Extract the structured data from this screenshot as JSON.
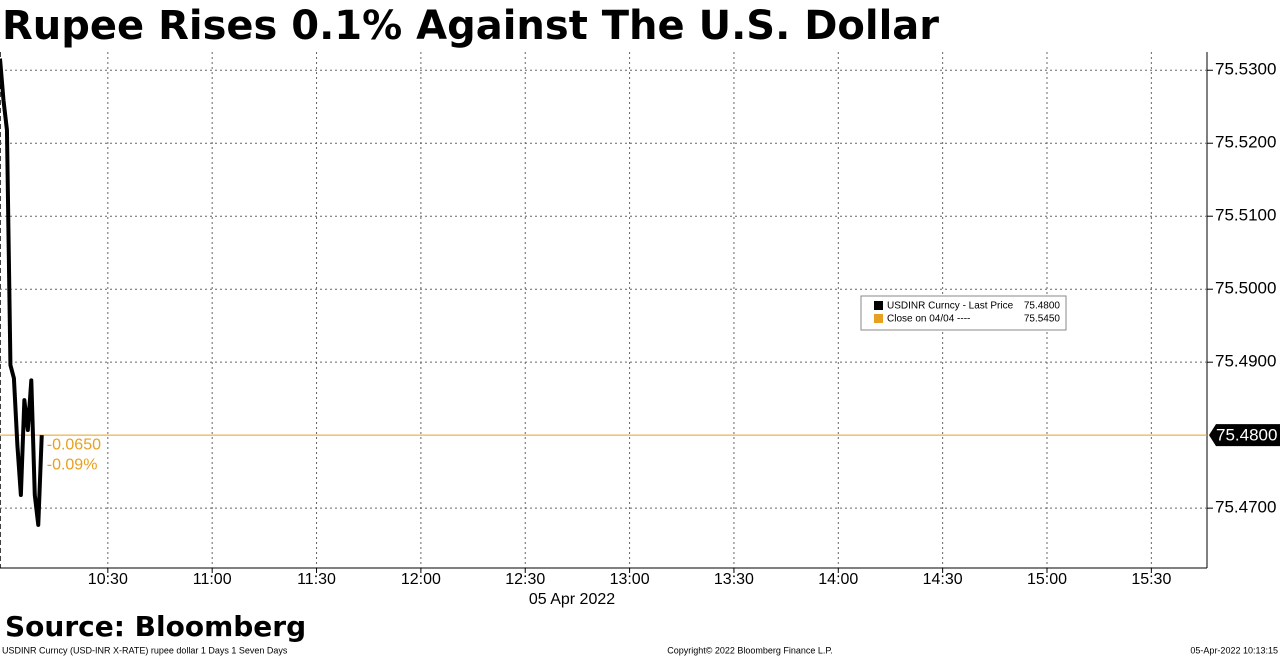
{
  "chart_data": {
    "type": "line",
    "title": "Rupee Rises 0.1% Against The U.S. Dollar",
    "x": [
      599,
      600,
      601,
      602,
      603,
      604,
      605,
      606,
      607,
      608,
      609,
      610,
      611
    ],
    "series": [
      {
        "name": "USDINR Curncy - Last Price",
        "color": "#000000",
        "values": [
          75.5316,
          75.5259,
          75.5218,
          75.4896,
          75.4878,
          75.4786,
          75.4718,
          75.4848,
          75.4807,
          75.4875,
          75.4718,
          75.4677,
          75.48
        ]
      }
    ],
    "xlim": [
      599,
      946
    ],
    "xticks": [
      {
        "value": 630,
        "label": "10:30"
      },
      {
        "value": 660,
        "label": "11:00"
      },
      {
        "value": 690,
        "label": "11:30"
      },
      {
        "value": 720,
        "label": "12:00"
      },
      {
        "value": 750,
        "label": "12:30"
      },
      {
        "value": 780,
        "label": "13:00"
      },
      {
        "value": 810,
        "label": "13:30"
      },
      {
        "value": 840,
        "label": "14:00"
      },
      {
        "value": 870,
        "label": "14:30"
      },
      {
        "value": 900,
        "label": "15:00"
      },
      {
        "value": 930,
        "label": "15:30"
      }
    ],
    "x_date_label": "05 Apr 2022",
    "ylim": [
      75.4618,
      75.5325
    ],
    "yticks": [
      {
        "value": 75.47,
        "label": "75.4700"
      },
      {
        "value": 75.49,
        "label": "75.4900"
      },
      {
        "value": 75.5,
        "label": "75.5000"
      },
      {
        "value": 75.51,
        "label": "75.5100"
      },
      {
        "value": 75.52,
        "label": "75.5200"
      },
      {
        "value": 75.53,
        "label": "75.5300"
      }
    ],
    "grid": true,
    "reference_line": {
      "value": 75.48,
      "label": "75.4800",
      "color": "#e8a020"
    },
    "change_labels": [
      "-0.0650",
      "-0.09%"
    ],
    "legend": [
      {
        "name": "USDINR Curncy - Last Price",
        "label": "75.4800",
        "color": "#000000"
      },
      {
        "name": "Close on 04/04 ----",
        "label": "75.5450",
        "color": "#e8a020"
      }
    ],
    "source": "Source: Bloomberg",
    "footer": [
      "USDINR Curncy (USD-INR X-RATE) rupee dollar 1 Days 1 Seven Days",
      "Copyright© 2022 Bloomberg Finance L.P.",
      "05-Apr-2022 10:13:15"
    ]
  }
}
